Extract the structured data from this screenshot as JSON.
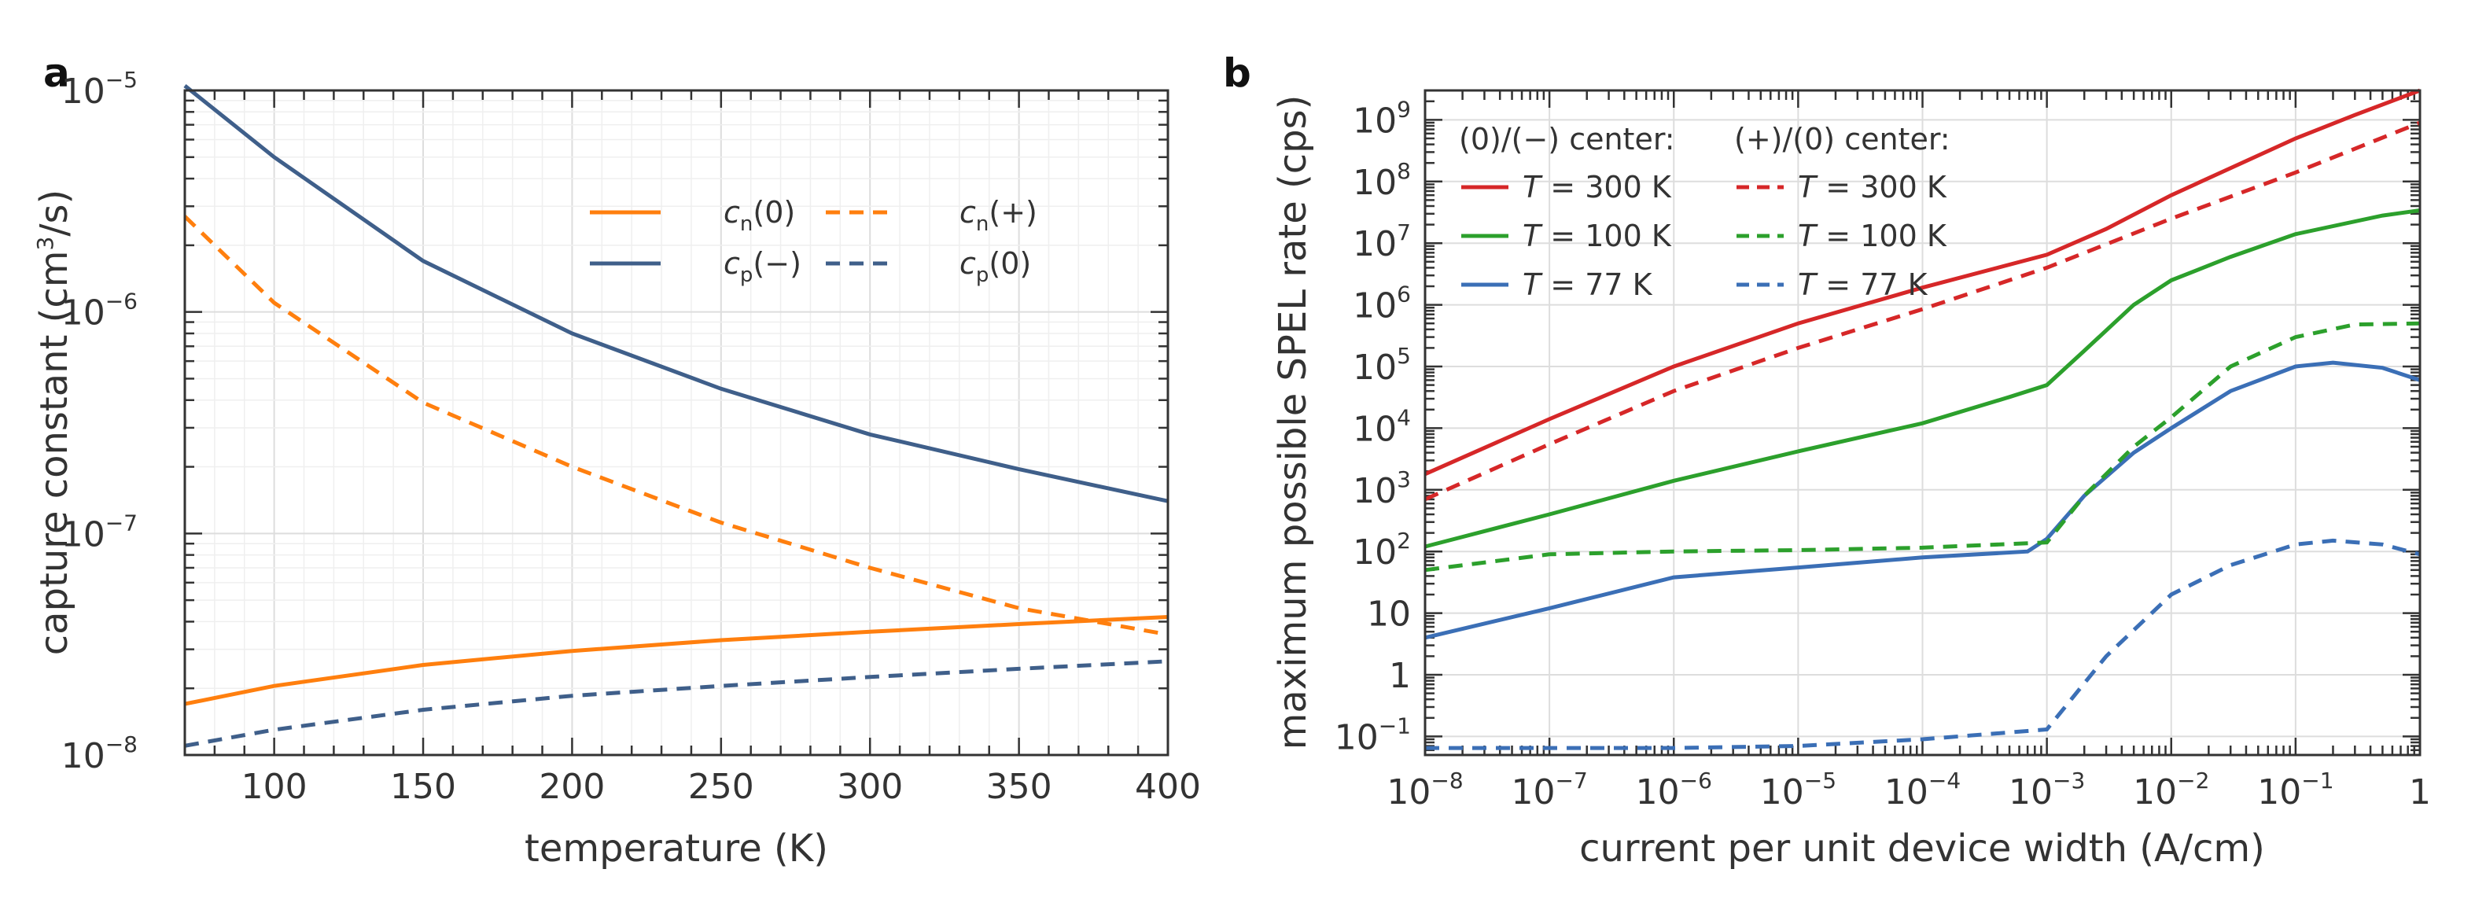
{
  "chart_data": [
    {
      "panel": "a",
      "type": "line",
      "xlabel": "temperature (K)",
      "ylabel_main": "capture constant (cm",
      "ylabel_sup": "3",
      "ylabel_end": "/s)",
      "yscale": "log",
      "xlim": [
        70,
        400
      ],
      "ylim": [
        1e-08,
        1e-05
      ],
      "xticks": [
        100,
        150,
        200,
        250,
        300,
        350,
        400
      ],
      "ytick_labels": [
        {
          "value": 1e-08,
          "base": "10",
          "exp": "−8"
        },
        {
          "value": 1e-07,
          "base": "10",
          "exp": "−7"
        },
        {
          "value": 1e-06,
          "base": "10",
          "exp": "−6"
        },
        {
          "value": 1e-05,
          "base": "10",
          "exp": "−5"
        }
      ],
      "series": [
        {
          "name": "cn(0)",
          "label_main": "c",
          "label_sub": "n",
          "label_tail": "(0)",
          "color": "#ff7f0e",
          "dash": "solid",
          "x": [
            70,
            100,
            150,
            200,
            250,
            300,
            350,
            400
          ],
          "y": [
            1.7e-08,
            2.05e-08,
            2.55e-08,
            2.95e-08,
            3.3e-08,
            3.6e-08,
            3.9e-08,
            4.2e-08
          ]
        },
        {
          "name": "cp(−)",
          "label_main": "c",
          "label_sub": "p",
          "label_tail": "(−)",
          "color": "#3f5f8a",
          "dash": "solid",
          "x": [
            70,
            100,
            150,
            200,
            250,
            300,
            350,
            400
          ],
          "y": [
            1.05e-05,
            5e-06,
            1.7e-06,
            8e-07,
            4.5e-07,
            2.8e-07,
            1.95e-07,
            1.4e-07
          ]
        },
        {
          "name": "cn(+)",
          "label_main": "c",
          "label_sub": "n",
          "label_tail": "(+)",
          "color": "#ff7f0e",
          "dash": "dashed",
          "x": [
            70,
            100,
            150,
            200,
            250,
            300,
            350,
            400
          ],
          "y": [
            2.7e-06,
            1.1e-06,
            3.9e-07,
            2e-07,
            1.12e-07,
            7e-08,
            4.6e-08,
            3.5e-08
          ]
        },
        {
          "name": "cp(0)",
          "label_main": "c",
          "label_sub": "p",
          "label_tail": "(0)",
          "color": "#3f5f8a",
          "dash": "dashed",
          "x": [
            70,
            100,
            150,
            200,
            250,
            300,
            350,
            400
          ],
          "y": [
            1.1e-08,
            1.3e-08,
            1.6e-08,
            1.85e-08,
            2.05e-08,
            2.25e-08,
            2.45e-08,
            2.65e-08
          ]
        }
      ],
      "legend_placement": "upper right, two columns"
    },
    {
      "panel": "b",
      "type": "line",
      "xlabel": "current per unit device width (A/cm)",
      "ylabel": "maximum possible SPEL rate (cps)",
      "xscale": "log",
      "yscale": "log",
      "xlim": [
        1e-08,
        1
      ],
      "ylim": [
        0.05,
        3000000000.0
      ],
      "xtick_labels": [
        {
          "value": 1e-08,
          "base": "10",
          "exp": "−8"
        },
        {
          "value": 1e-07,
          "base": "10",
          "exp": "−7"
        },
        {
          "value": 1e-06,
          "base": "10",
          "exp": "−6"
        },
        {
          "value": 1e-05,
          "base": "10",
          "exp": "−5"
        },
        {
          "value": 0.0001,
          "base": "10",
          "exp": "−4"
        },
        {
          "value": 0.001,
          "base": "10",
          "exp": "−3"
        },
        {
          "value": 0.01,
          "base": "10",
          "exp": "−2"
        },
        {
          "value": 0.1,
          "base": "10",
          "exp": "−1"
        },
        {
          "value": 1,
          "base": "1",
          "exp": ""
        }
      ],
      "ytick_labels": [
        {
          "value": 0.1,
          "base": "10",
          "exp": "−1"
        },
        {
          "value": 1,
          "base": "1",
          "exp": ""
        },
        {
          "value": 10,
          "base": "10",
          "exp": ""
        },
        {
          "value": 100,
          "base": "10",
          "exp": "2"
        },
        {
          "value": 1000,
          "base": "10",
          "exp": "3"
        },
        {
          "value": 10000,
          "base": "10",
          "exp": "4"
        },
        {
          "value": 100000,
          "base": "10",
          "exp": "5"
        },
        {
          "value": 1000000,
          "base": "10",
          "exp": "6"
        },
        {
          "value": 10000000,
          "base": "10",
          "exp": "7"
        },
        {
          "value": 100000000,
          "base": "10",
          "exp": "8"
        },
        {
          "value": 1000000000,
          "base": "10",
          "exp": "9"
        }
      ],
      "legend_headers": [
        "(0)/(−) center:",
        "(+)/(0) center:"
      ],
      "series": [
        {
          "name": "T = 300 K",
          "label_main": "T",
          "label_tail": " = 300 K",
          "group": "(0)/(−) center",
          "color": "#d62728",
          "dash": "solid",
          "x": [
            1e-08,
            1e-07,
            1e-06,
            1e-05,
            0.0001,
            0.001,
            0.003,
            0.01,
            0.1,
            0.3,
            1
          ],
          "y": [
            1800,
            14000,
            100000,
            500000,
            1900000,
            6500000,
            17000000,
            60000000,
            500000000,
            1200000000,
            3000000000
          ]
        },
        {
          "name": "T = 100 K",
          "label_main": "T",
          "label_tail": " = 100 K",
          "group": "(0)/(−) center",
          "color": "#2ca02c",
          "dash": "solid",
          "x": [
            1e-08,
            1e-07,
            1e-06,
            1e-05,
            0.0001,
            0.0005,
            0.001,
            0.002,
            0.005,
            0.01,
            0.03,
            0.1,
            0.5,
            1
          ],
          "y": [
            120,
            400,
            1400,
            4200,
            12000,
            32000,
            50000,
            180000,
            1000000,
            2500000,
            6000000,
            14000000,
            28000000,
            34000000
          ]
        },
        {
          "name": "T = 77 K",
          "label_main": "T",
          "label_tail": " = 77 K",
          "group": "(0)/(−) center",
          "color": "#3b6fb6",
          "dash": "solid",
          "x": [
            1e-08,
            1e-07,
            1e-06,
            1e-05,
            0.0001,
            0.0007,
            0.001,
            0.002,
            0.005,
            0.01,
            0.03,
            0.1,
            0.2,
            0.5,
            1
          ],
          "y": [
            4,
            12,
            38,
            55,
            80,
            100,
            160,
            800,
            4000,
            10000,
            40000,
            100000,
            115000,
            95000,
            60000
          ]
        },
        {
          "name": "T = 300 K",
          "label_main": "T",
          "label_tail": " = 300 K",
          "group": "(+)/(0) center",
          "color": "#d62728",
          "dash": "dashed",
          "x": [
            1e-08,
            1e-07,
            1e-06,
            1e-05,
            0.0001,
            0.001,
            0.01,
            0.1,
            1
          ],
          "y": [
            700,
            5500,
            40000,
            200000,
            850000,
            4000000,
            25000000,
            140000000,
            900000000
          ]
        },
        {
          "name": "T = 100 K",
          "label_main": "T",
          "label_tail": " = 100 K",
          "group": "(+)/(0) center",
          "color": "#2ca02c",
          "dash": "dashed",
          "x": [
            1e-08,
            1e-07,
            1e-06,
            1e-05,
            0.0001,
            0.001,
            0.002,
            0.005,
            0.01,
            0.03,
            0.1,
            0.3,
            1
          ],
          "y": [
            50,
            90,
            100,
            105,
            115,
            140,
            800,
            5000,
            15000,
            100000,
            300000,
            480000,
            500000
          ]
        },
        {
          "name": "T = 77 K",
          "label_main": "T",
          "label_tail": " = 77 K",
          "group": "(+)/(0) center",
          "color": "#3b6fb6",
          "dash": "dashed",
          "x": [
            1e-08,
            1e-07,
            1e-06,
            1e-05,
            0.0001,
            0.001,
            0.003,
            0.01,
            0.03,
            0.1,
            0.2,
            0.5,
            1
          ],
          "y": [
            0.065,
            0.065,
            0.065,
            0.07,
            0.09,
            0.13,
            2,
            20,
            60,
            130,
            150,
            130,
            90
          ]
        }
      ],
      "legend_placement": "upper left, two columns"
    }
  ]
}
